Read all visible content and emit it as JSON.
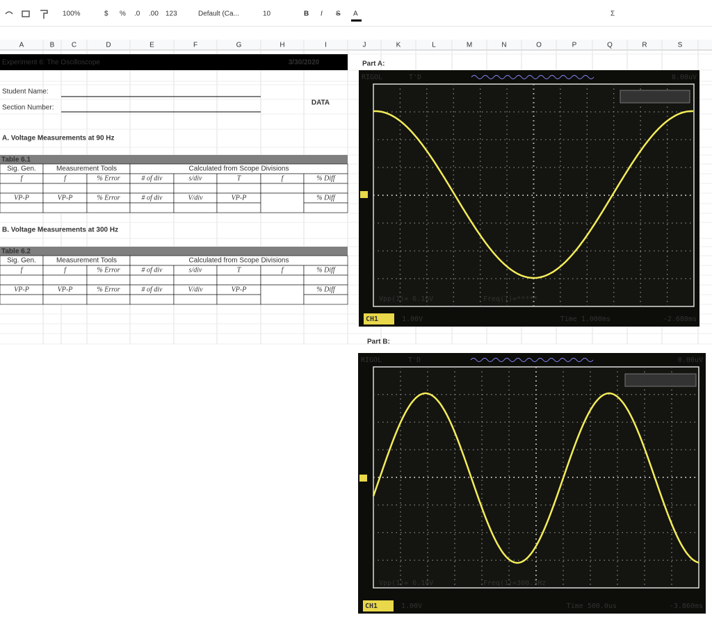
{
  "toolbar": {
    "zoom": "100%",
    "currency": "$",
    "percent": "%",
    "decrease_decimals": ".0",
    "increase_decimals": ".00",
    "more_formats": "123",
    "font": "Default (Ca...",
    "font_size": "10",
    "bold": "B",
    "italic": "I",
    "strikethrough": "S",
    "text_color": "A",
    "functions": "Σ"
  },
  "columns": [
    "A",
    "B",
    "C",
    "D",
    "E",
    "F",
    "G",
    "H",
    "I",
    "J",
    "K",
    "L",
    "M",
    "N",
    "O",
    "P",
    "Q",
    "R",
    "S"
  ],
  "sheet": {
    "title": "Experiment 6: The Oscilloscope",
    "date": "3/30/2020",
    "student_name": "Student Name:",
    "section_number": "Section Number:",
    "data_label": "DATA",
    "section_a": "A. Voltage Measurements at 90 Hz",
    "table_1": {
      "caption": "Table 6.1",
      "groups": [
        "Sig. Gen.",
        "Measurement Tools",
        "Calculated from Scope Divisions"
      ],
      "row_1": [
        "f",
        "f",
        "% Error",
        "# of div",
        "s/div",
        "T",
        "f",
        "% Diff"
      ],
      "row_2": [
        "VP-P",
        "VP-P",
        "% Error",
        "# of div",
        "V/div",
        "VP-P",
        "% Diff"
      ]
    },
    "section_b": "B. Voltage Measurements at 300 Hz",
    "table_2": {
      "caption": "Table 6.2",
      "groups": [
        "Sig. Gen.",
        "Measurement Tools",
        "Calculated from Scope Divisions"
      ],
      "row_1": [
        "f",
        "f",
        "% Error",
        "# of div",
        "s/div",
        "T",
        "f",
        "% Diff"
      ],
      "row_2": [
        "VP-P",
        "VP-P",
        "% Error",
        "# of div",
        "V/div",
        "VP-P",
        "% Diff"
      ]
    }
  },
  "part_a": {
    "label": "Part A:",
    "brand": "RIGOL",
    "status": "T'D",
    "trigger_level": "0.00uV",
    "trigger_freq": "89.9993Hz",
    "vpp": "Vpp(1)= 6.16V",
    "freq": "Freq(1)=*****",
    "channel": "CH1",
    "volts_div": "1.00V",
    "time_base": "Time 1.000ms",
    "offset": "-2.680ms"
  },
  "part_b": {
    "label": "Part B:",
    "brand": "RIGOL",
    "status": "T'D",
    "trigger_level": "0.00uV",
    "trigger_freq": "299.997Hz",
    "vpp": "Vpp(1)= 6.16V",
    "freq": "Freq(1)=300.3Hz",
    "channel": "CH1",
    "volts_div": "1.00V",
    "time_base": "Time 500.0us",
    "offset": "-3.860ms"
  }
}
